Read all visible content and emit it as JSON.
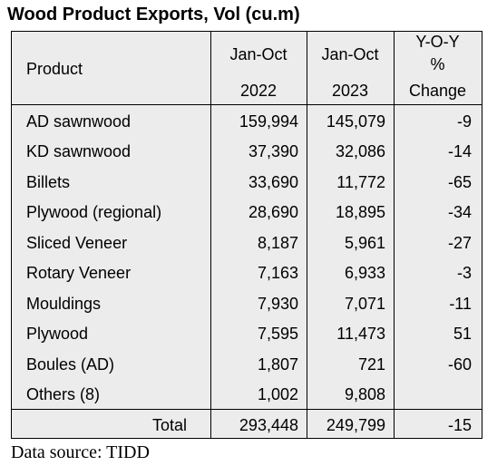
{
  "title": "Wood Product Exports, Vol (cu.m)",
  "headers": {
    "product": "Product",
    "col1_top": "Jan-Oct",
    "col1_bottom": "2022",
    "col2_top": "Jan-Oct",
    "col2_bottom": "2023",
    "col3_line1": "Y-O-Y",
    "col3_line2": "%",
    "col3_line3": "Change"
  },
  "rows": [
    {
      "product": "AD sawnwood",
      "v2022": "159,994",
      "v2023": "145,079",
      "change": "-9"
    },
    {
      "product": "KD sawnwood",
      "v2022": "37,390",
      "v2023": "32,086",
      "change": "-14"
    },
    {
      "product": "Billets",
      "v2022": "33,690",
      "v2023": "11,772",
      "change": "-65"
    },
    {
      "product": "Plywood (regional)",
      "v2022": "28,690",
      "v2023": "18,895",
      "change": "-34"
    },
    {
      "product": "Sliced Veneer",
      "v2022": "8,187",
      "v2023": "5,961",
      "change": "-27"
    },
    {
      "product": "Rotary Veneer",
      "v2022": "7,163",
      "v2023": "6,933",
      "change": "-3"
    },
    {
      "product": "Mouldings",
      "v2022": "7,930",
      "v2023": "7,071",
      "change": "-11"
    },
    {
      "product": "Plywood",
      "v2022": "7,595",
      "v2023": "11,473",
      "change": "51"
    },
    {
      "product": "Boules (AD)",
      "v2022": "1,807",
      "v2023": "721",
      "change": "-60"
    },
    {
      "product": "Others (8)",
      "v2022": "1,002",
      "v2023": "9,808",
      "change": ""
    }
  ],
  "total": {
    "label": "Total",
    "v2022": "293,448",
    "v2023": "249,799",
    "change": "-15"
  },
  "source": "Data source: TIDD"
}
